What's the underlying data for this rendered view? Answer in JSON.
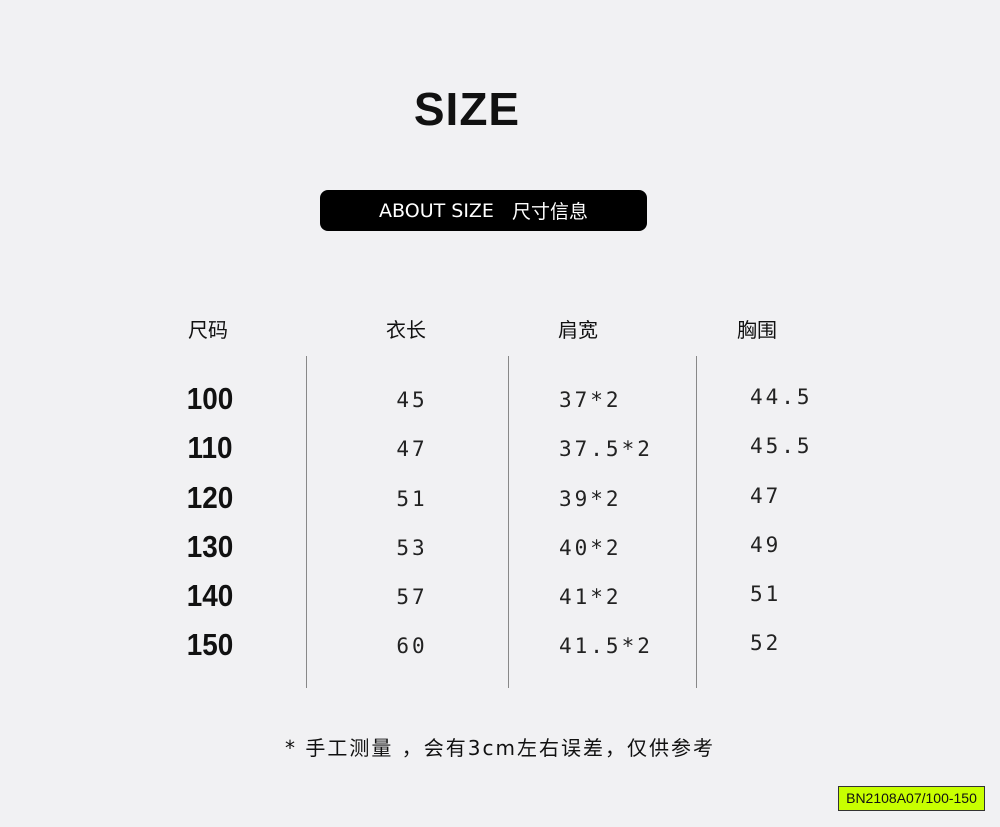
{
  "header": {
    "title": "SIZE",
    "badge": {
      "en": "ABOUT SIZE",
      "zh": "尺寸信息"
    }
  },
  "table": {
    "columns": [
      "尺码",
      "衣长",
      "肩宽",
      "胸围"
    ],
    "rows": [
      [
        "100",
        "45",
        "37*2",
        "44.5"
      ],
      [
        "110",
        "47",
        "37.5*2",
        "45.5"
      ],
      [
        "120",
        "51",
        "39*2",
        "47"
      ],
      [
        "130",
        "53",
        "40*2",
        "49"
      ],
      [
        "140",
        "57",
        "41*2",
        "51"
      ],
      [
        "150",
        "60",
        "41.5*2",
        "52"
      ]
    ]
  },
  "note": "* 手工测量 ，会有3cm左右误差，仅供参考",
  "code": "BN2108A07/100-150"
}
